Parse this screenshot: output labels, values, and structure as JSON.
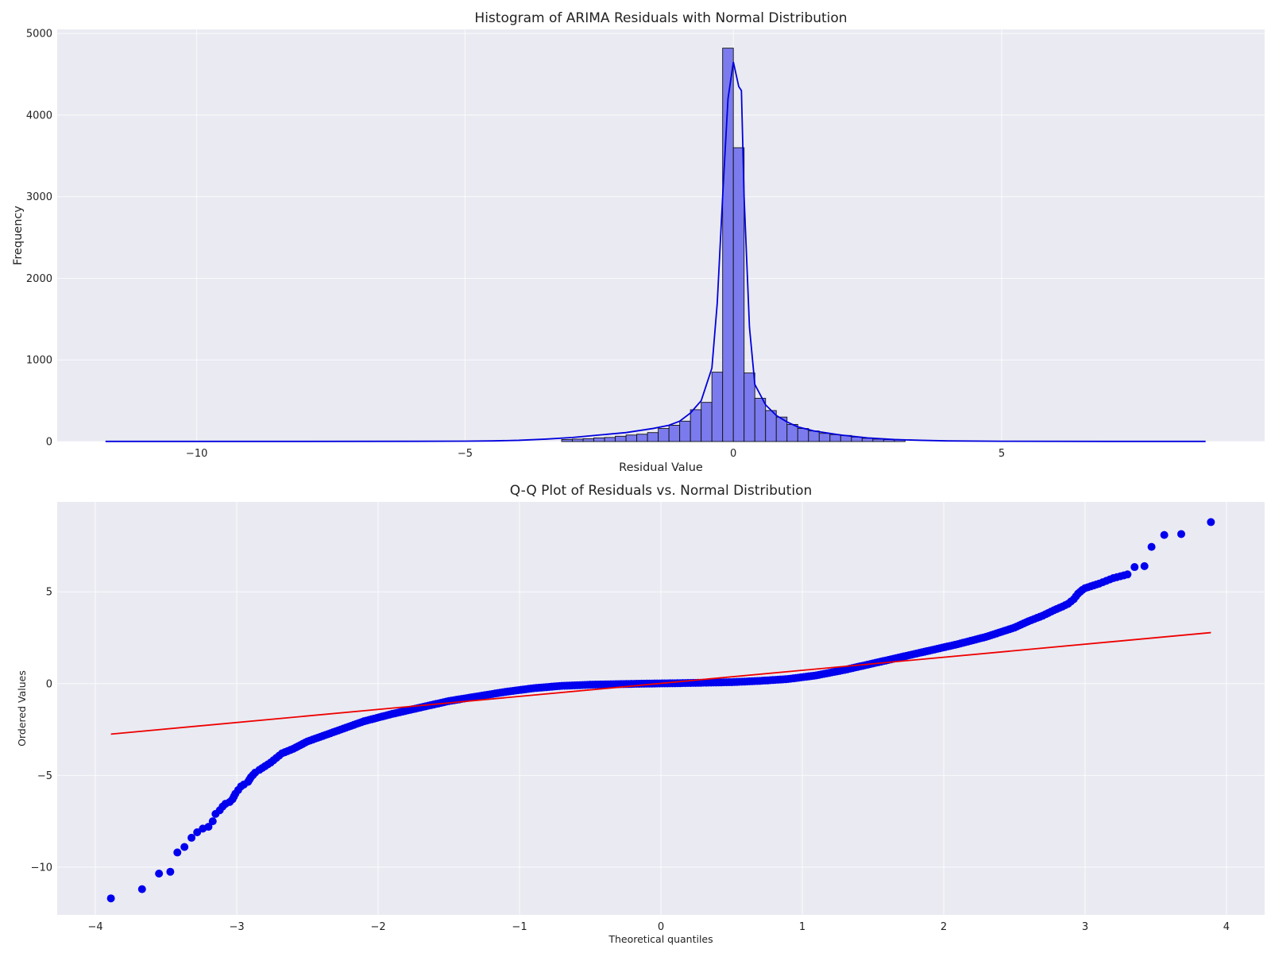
{
  "colors": {
    "background": "#eaeaf2",
    "bar_fill": "#7b7bee",
    "bar_edge": "#111111",
    "kde_line": "#0000dd",
    "qq_points": "#0000ee",
    "qq_line": "#ee0000"
  },
  "chart_data": [
    {
      "type": "bar",
      "title": "Histogram of ARIMA Residuals with Normal Distribution",
      "xlabel": "Residual Value",
      "ylabel": "Frequency",
      "xlim": [
        -12.6,
        9.9
      ],
      "ylim": [
        0,
        5050
      ],
      "xticks": [
        -10,
        -5,
        0,
        5
      ],
      "xtick_labels": [
        "−10",
        "−5",
        "0",
        "5"
      ],
      "yticks": [
        0,
        1000,
        2000,
        3000,
        4000,
        5000
      ],
      "ytick_labels": [
        "0",
        "1000",
        "2000",
        "3000",
        "4000",
        "5000"
      ],
      "grid": true,
      "bin_width": 0.2,
      "bins": [
        {
          "x0": -3.2,
          "count": 25
        },
        {
          "x0": -3.0,
          "count": 30
        },
        {
          "x0": -2.8,
          "count": 35
        },
        {
          "x0": -2.6,
          "count": 45
        },
        {
          "x0": -2.4,
          "count": 50
        },
        {
          "x0": -2.2,
          "count": 65
        },
        {
          "x0": -2.0,
          "count": 80
        },
        {
          "x0": -1.8,
          "count": 90
        },
        {
          "x0": -1.6,
          "count": 110
        },
        {
          "x0": -1.4,
          "count": 160
        },
        {
          "x0": -1.2,
          "count": 200
        },
        {
          "x0": -1.0,
          "count": 250
        },
        {
          "x0": -0.8,
          "count": 390
        },
        {
          "x0": -0.6,
          "count": 480
        },
        {
          "x0": -0.4,
          "count": 850
        },
        {
          "x0": -0.2,
          "count": 4820
        },
        {
          "x0": 0.0,
          "count": 3600
        },
        {
          "x0": 0.2,
          "count": 840
        },
        {
          "x0": 0.4,
          "count": 530
        },
        {
          "x0": 0.6,
          "count": 380
        },
        {
          "x0": 0.8,
          "count": 300
        },
        {
          "x0": 1.0,
          "count": 210
        },
        {
          "x0": 1.2,
          "count": 160
        },
        {
          "x0": 1.4,
          "count": 130
        },
        {
          "x0": 1.6,
          "count": 100
        },
        {
          "x0": 1.8,
          "count": 85
        },
        {
          "x0": 2.0,
          "count": 75
        },
        {
          "x0": 2.2,
          "count": 55
        },
        {
          "x0": 2.4,
          "count": 40
        },
        {
          "x0": 2.6,
          "count": 30
        },
        {
          "x0": 2.8,
          "count": 25
        },
        {
          "x0": 3.0,
          "count": 20
        }
      ],
      "kde": {
        "x": [
          -11.7,
          -8,
          -6,
          -5,
          -4.5,
          -4,
          -3.5,
          -3,
          -2.5,
          -2,
          -1.5,
          -1.2,
          -1,
          -0.8,
          -0.6,
          -0.4,
          -0.3,
          -0.2,
          -0.1,
          0,
          0.1,
          0.15,
          0.2,
          0.3,
          0.4,
          0.6,
          0.8,
          1,
          1.2,
          1.5,
          2,
          2.5,
          3,
          3.5,
          4,
          5,
          7,
          8.8
        ],
        "y": [
          2,
          2,
          3,
          5,
          8,
          15,
          30,
          50,
          80,
          110,
          160,
          200,
          250,
          350,
          500,
          900,
          1700,
          3000,
          4200,
          4650,
          4350,
          4300,
          3000,
          1400,
          700,
          450,
          320,
          240,
          180,
          130,
          80,
          45,
          25,
          15,
          8,
          4,
          2,
          2
        ]
      }
    },
    {
      "type": "scatter",
      "title": "Q-Q Plot of Residuals vs. Normal Distribution",
      "xlabel": "Theoretical quantiles",
      "ylabel": "Ordered Values",
      "xlim": [
        -4.27,
        4.27
      ],
      "ylim": [
        -12.6,
        9.9
      ],
      "xticks": [
        -4,
        -3,
        -2,
        -1,
        0,
        1,
        2,
        3,
        4
      ],
      "xtick_labels": [
        "−4",
        "−3",
        "−2",
        "−1",
        "0",
        "1",
        "2",
        "3",
        "4"
      ],
      "yticks": [
        -10,
        -5,
        0,
        5
      ],
      "ytick_labels": [
        "−10",
        "−5",
        "0",
        "5"
      ],
      "grid": true,
      "points": {
        "x": [
          -3.89,
          -3.67,
          -3.55,
          -3.47,
          -3.42,
          -3.37,
          -3.32,
          -3.28,
          -3.24,
          -3.2,
          -3.17,
          -3.15,
          -3.12,
          -3.1,
          -3.08,
          -3.05,
          -3.03,
          -3.01,
          -2.99,
          -2.97,
          -2.95,
          -2.92,
          -2.9,
          -2.87,
          -2.84,
          -2.8,
          -2.76,
          -2.72,
          -2.68,
          -2.6,
          -2.5,
          -2.3,
          -2.1,
          -1.9,
          -1.7,
          -1.5,
          -1.3,
          -1.1,
          -0.9,
          -0.7,
          -0.5,
          -0.3,
          -0.1,
          0.1,
          0.3,
          0.5,
          0.7,
          0.9,
          1.1,
          1.3,
          1.5,
          1.7,
          1.9,
          2.1,
          2.3,
          2.5,
          2.6,
          2.7,
          2.78,
          2.84,
          2.88,
          2.92,
          2.95,
          2.98,
          3.0,
          3.02,
          3.04,
          3.06,
          3.1,
          3.15,
          3.2,
          3.25,
          3.3,
          3.35,
          3.42,
          3.47,
          3.56,
          3.68,
          3.89
        ],
        "y": [
          -11.7,
          -11.2,
          -10.35,
          -10.25,
          -9.2,
          -8.9,
          -8.4,
          -8.1,
          -7.9,
          -7.8,
          -7.5,
          -7.1,
          -6.9,
          -6.7,
          -6.55,
          -6.45,
          -6.3,
          -6.0,
          -5.8,
          -5.6,
          -5.5,
          -5.35,
          -5.1,
          -4.85,
          -4.7,
          -4.5,
          -4.3,
          -4.05,
          -3.8,
          -3.55,
          -3.15,
          -2.6,
          -2.05,
          -1.65,
          -1.3,
          -0.95,
          -0.7,
          -0.45,
          -0.25,
          -0.12,
          -0.06,
          -0.03,
          0.0,
          0.02,
          0.05,
          0.08,
          0.15,
          0.25,
          0.45,
          0.75,
          1.1,
          1.45,
          1.8,
          2.15,
          2.55,
          3.05,
          3.4,
          3.7,
          4.0,
          4.2,
          4.35,
          4.6,
          4.9,
          5.1,
          5.2,
          5.25,
          5.3,
          5.35,
          5.45,
          5.6,
          5.75,
          5.85,
          5.95,
          6.35,
          6.4,
          7.45,
          8.1,
          8.15,
          8.8
        ]
      },
      "fit_line": {
        "x": [
          -3.89,
          3.89
        ],
        "y": [
          -2.75,
          2.78
        ]
      }
    }
  ]
}
